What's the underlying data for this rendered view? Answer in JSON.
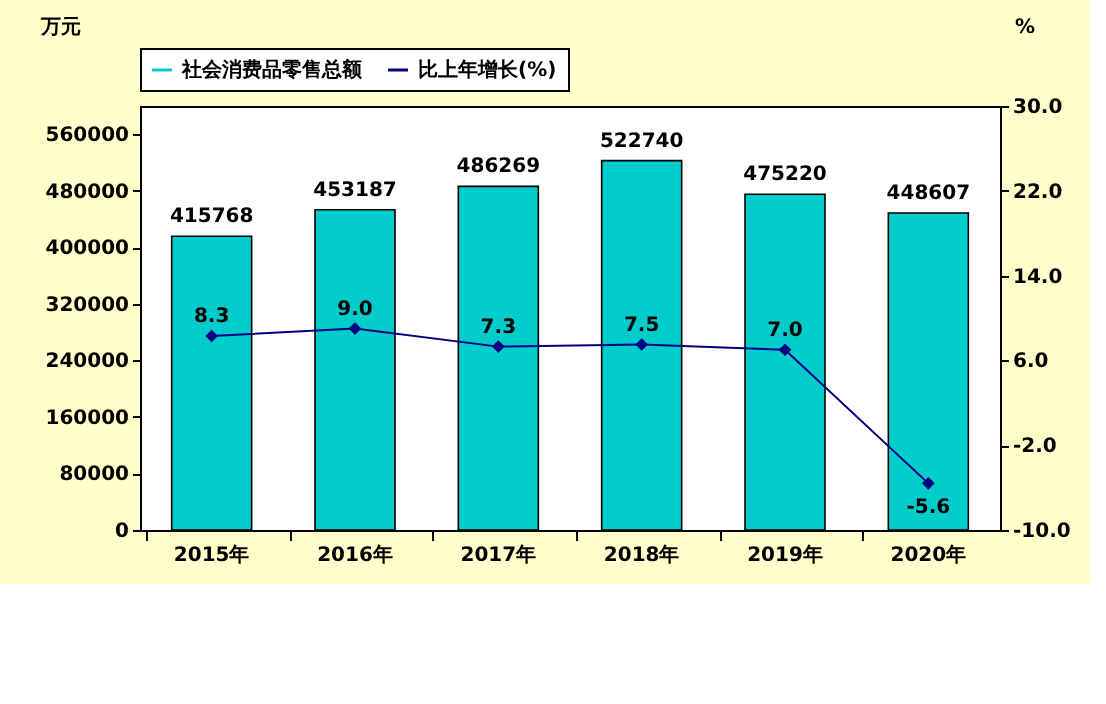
{
  "chart_data": {
    "type": "bar",
    "categories": [
      "2015年",
      "2016年",
      "2017年",
      "2018年",
      "2019年",
      "2020年"
    ],
    "ylabel": "万元",
    "y2label": "%",
    "series": [
      {
        "name": "社会消费品零售总额",
        "color": "#00cccc",
        "values": [
          415768,
          453187,
          486269,
          522740,
          475220,
          448607
        ]
      },
      {
        "name": "比上年增长(%)",
        "type": "line",
        "axis": "y2",
        "color": "#000080",
        "marker": "diamond",
        "values": [
          8.3,
          9.0,
          7.3,
          7.5,
          7.0,
          -5.6
        ],
        "value_labels": [
          "8.3",
          "9.0",
          "7.3",
          "7.5",
          "7.0",
          "-5.6"
        ]
      }
    ],
    "ylim": [
      0,
      600000
    ],
    "yticks": [
      0,
      80000,
      160000,
      240000,
      320000,
      400000,
      480000,
      560000
    ],
    "y2lim": [
      -10,
      30
    ],
    "y2ticks": [
      {
        "value": -10,
        "label": "-10.0"
      },
      {
        "value": -2,
        "label": "-2.0"
      },
      {
        "value": 6,
        "label": "6.0"
      },
      {
        "value": 14,
        "label": "14.0"
      },
      {
        "value": 22,
        "label": "22.0"
      },
      {
        "value": 30,
        "label": "30.0"
      }
    ],
    "data_labels": true,
    "grid": false,
    "legend": "top"
  }
}
